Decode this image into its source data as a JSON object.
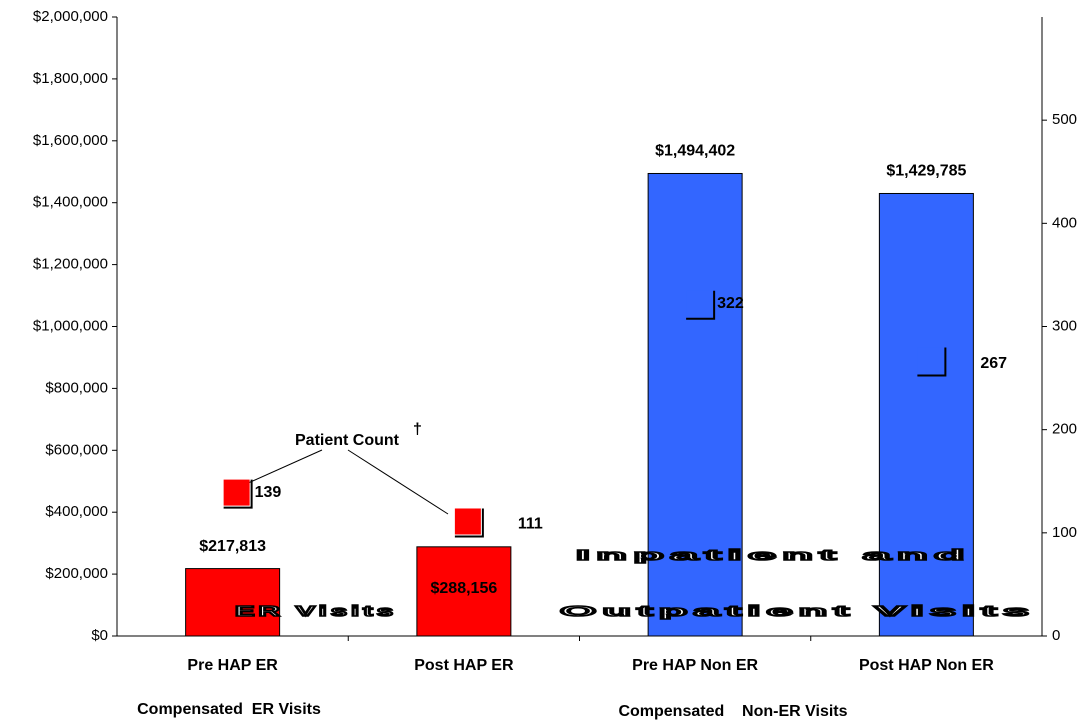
{
  "chart_data": {
    "type": "bar",
    "categories": [
      "Pre HAP ER",
      "Post HAP ER",
      "Pre HAP Non ER",
      "Post HAP Non ER"
    ],
    "values": [
      217813,
      288156,
      1494402,
      1429785
    ],
    "value_labels": [
      "$217,813",
      "$288,156",
      "$1,494,402",
      "$1,429,785"
    ],
    "colors": [
      "#ff0000",
      "#ff0000",
      "#3366ff",
      "#3366ff"
    ],
    "ylim": [
      0,
      2000000
    ],
    "yticks": [
      {
        "value": 0,
        "label": "$0"
      },
      {
        "value": 200000,
        "label": "$200,000"
      },
      {
        "value": 400000,
        "label": "$400,000"
      },
      {
        "value": 600000,
        "label": "$600,000"
      },
      {
        "value": 800000,
        "label": "$800,000"
      },
      {
        "value": 1000000,
        "label": "$1,000,000"
      },
      {
        "value": 1200000,
        "label": "$1,200,000"
      },
      {
        "value": 1400000,
        "label": "$1,400,000"
      },
      {
        "value": 1600000,
        "label": "$1,600,000"
      },
      {
        "value": 1800000,
        "label": "$1,800,000"
      },
      {
        "value": 2000000,
        "label": "$2,000,000"
      }
    ],
    "y2lim": [
      0,
      600
    ],
    "y2ticks": [
      0,
      100,
      200,
      300,
      400,
      500
    ],
    "series": [
      {
        "name": "Patient Count",
        "axis": "y2",
        "values": [
          139,
          111,
          322,
          267
        ],
        "colors": [
          "#ff0000",
          "#ff0000",
          "#3366ff",
          "#3366ff"
        ]
      }
    ],
    "annotations": {
      "patient_count": "Patient Count",
      "dagger": "†",
      "er": "ER Visits",
      "inpatient": "Inpatient and",
      "outpatient": "Outpatient Visits"
    },
    "group_labels": [
      "Compensated  ER Visits",
      "Compensated    Non-ER Visits"
    ]
  }
}
